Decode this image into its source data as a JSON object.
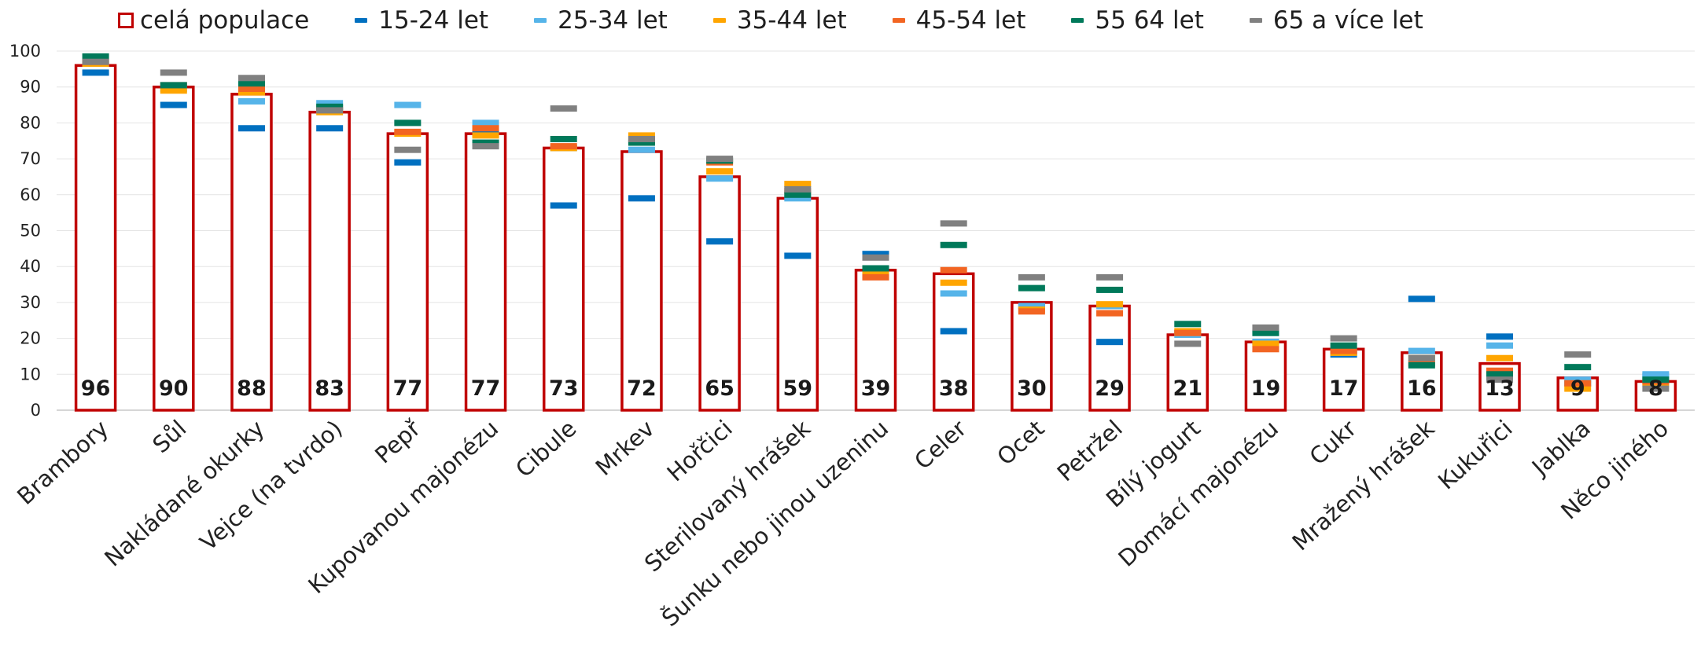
{
  "chart_data": {
    "type": "bar",
    "ylim": [
      0,
      100
    ],
    "yticks": [
      0,
      10,
      20,
      30,
      40,
      50,
      60,
      70,
      80,
      90,
      100
    ],
    "categories": [
      "Brambory",
      "Sůl",
      "Nakládané okurky",
      "Vejce (na tvrdo)",
      "Pepř",
      "Kupovanou majonézu",
      "Cibule",
      "Mrkev",
      "Hořčici",
      "Sterilovaný hrášek",
      "Šunku nebo jinou uzeninu",
      "Celer",
      "Ocet",
      "Petržel",
      "Bílý jogurt",
      "Domácí majonézu",
      "Cukr",
      "Mražený hrášek",
      "Kukuřici",
      "Jablka",
      "Něco jiného"
    ],
    "bar_series": {
      "name": "celá populace",
      "color": "#c00000",
      "values": [
        96,
        90,
        88,
        83,
        77,
        77,
        73,
        72,
        65,
        59,
        39,
        38,
        30,
        29,
        21,
        19,
        17,
        16,
        13,
        9,
        8
      ]
    },
    "marker_series": [
      {
        "name": "15-24 let",
        "color": "#0070c0",
        "values": [
          94,
          85,
          78.5,
          78.5,
          69,
          77,
          57,
          59,
          47,
          43,
          43.5,
          22,
          29,
          19,
          21.5,
          19,
          15.5,
          31,
          20.5,
          7.5,
          9.5
        ]
      },
      {
        "name": "25-34 let",
        "color": "#56b4e9",
        "values": [
          96.5,
          89.5,
          86,
          85.5,
          85,
          80,
          73,
          72.5,
          64.5,
          59,
          39,
          32.5,
          29,
          29,
          21,
          19,
          16,
          16.5,
          18,
          8.5,
          10
        ]
      },
      {
        "name": "35-44 let",
        "color": "#ffa500",
        "values": [
          96.5,
          89,
          88.5,
          83,
          77,
          76.5,
          73,
          76.5,
          66.5,
          63,
          38.5,
          35.5,
          28,
          29.5,
          22,
          18.5,
          16,
          14.5,
          14.5,
          6,
          7.5
        ]
      },
      {
        "name": "45-54 let",
        "color": "#f26522",
        "values": [
          97,
          90.5,
          89.5,
          84,
          77.5,
          78.5,
          73.5,
          75,
          69,
          61,
          37,
          39,
          27.5,
          27,
          21.5,
          17,
          16.5,
          13,
          11,
          7.5,
          8
        ]
      },
      {
        "name": "55 64 let",
        "color": "#00795a",
        "values": [
          98.5,
          90.5,
          91,
          84.5,
          80,
          74.5,
          75.5,
          74.5,
          69.5,
          60,
          39.5,
          46,
          34,
          33.5,
          24,
          21.5,
          18,
          12.5,
          10,
          12,
          8.5
        ]
      },
      {
        "name": "65 a více let",
        "color": "#808080",
        "values": [
          97,
          94,
          92.5,
          83.5,
          72.5,
          73.5,
          84,
          75.5,
          70,
          61.5,
          42.5,
          52,
          37,
          37,
          18.5,
          23,
          20,
          14.5,
          8.5,
          15.5,
          6
        ]
      }
    ],
    "legend_position": "top",
    "grid": true
  }
}
